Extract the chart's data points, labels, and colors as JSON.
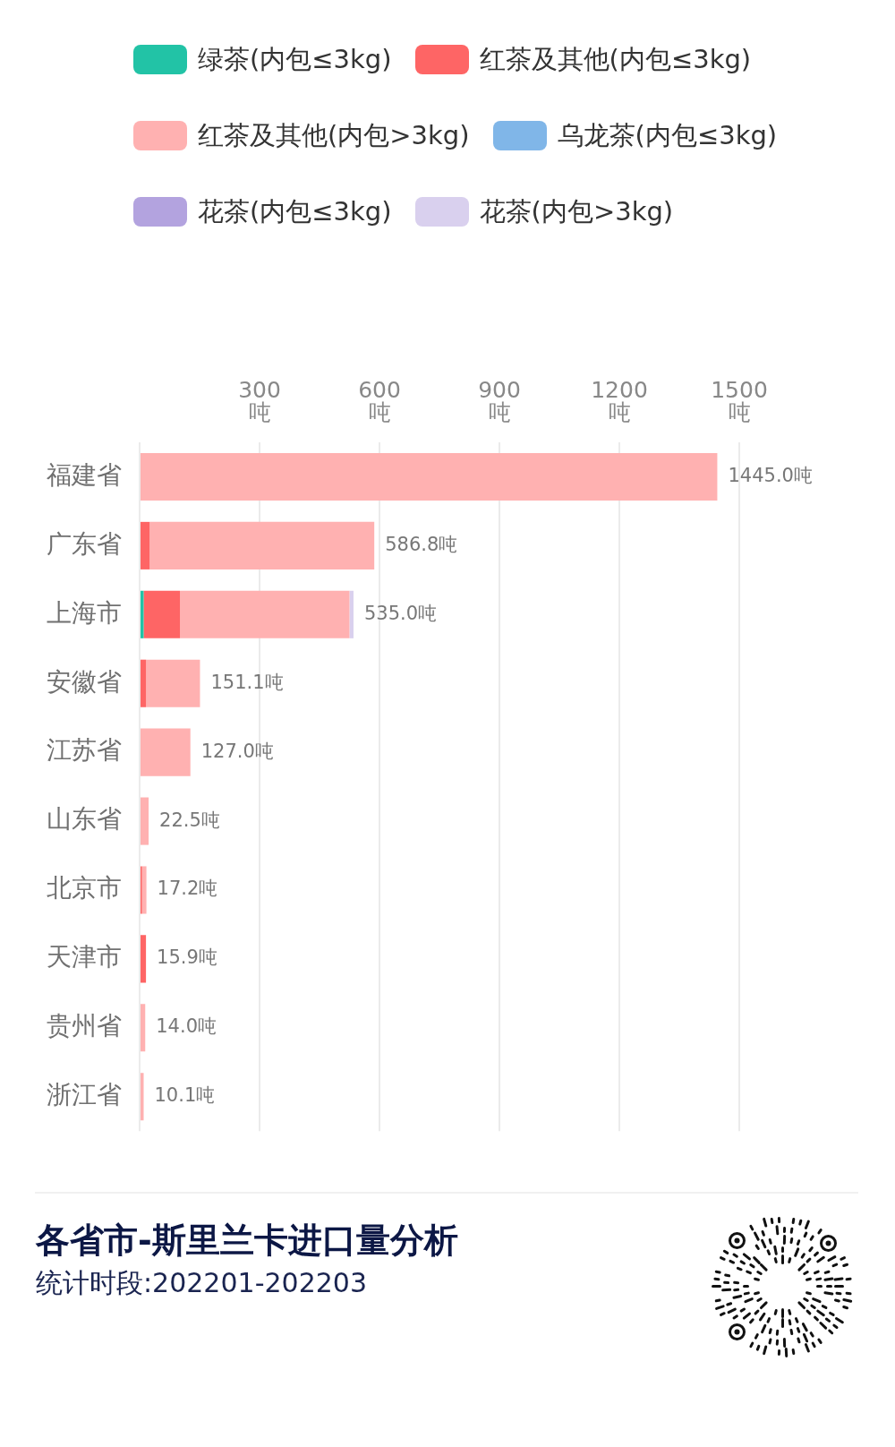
{
  "chart_data": {
    "type": "bar",
    "orientation": "horizontal",
    "stacked": true,
    "title": "各省市-斯里兰卡进口量分析",
    "subtitle": "统计时段:202201-202203",
    "categories": [
      "福建省",
      "广东省",
      "上海市",
      "安徽省",
      "江苏省",
      "山东省",
      "北京市",
      "天津市",
      "贵州省",
      "浙江省"
    ],
    "series": [
      {
        "name": "绿茶(内包≤3kg)",
        "color": "#22c3a6",
        "values": [
          null,
          null,
          10,
          null,
          null,
          null,
          null,
          null,
          null,
          null
        ]
      },
      {
        "name": "红茶及其他(内包≤3kg)",
        "color": "#fe6565",
        "values": [
          null,
          25,
          91,
          16,
          null,
          null,
          6,
          15.9,
          null,
          null
        ]
      },
      {
        "name": "红茶及其他(内包>3kg)",
        "color": "#ffb1b1",
        "values": [
          1445.0,
          562,
          424,
          135,
          127.0,
          22.5,
          11,
          null,
          14.0,
          10.1
        ]
      },
      {
        "name": "乌龙茶(内包≤3kg)",
        "color": "#80b6e8",
        "values": [
          null,
          null,
          null,
          null,
          null,
          null,
          null,
          null,
          null,
          null
        ]
      },
      {
        "name": "花茶(内包≤3kg)",
        "color": "#b3a3df",
        "values": [
          null,
          null,
          null,
          null,
          null,
          null,
          null,
          null,
          null,
          null
        ]
      },
      {
        "name": "花茶(内包>3kg)",
        "color": "#d9d0ee",
        "values": [
          null,
          null,
          10,
          null,
          null,
          null,
          null,
          null,
          null,
          null
        ]
      }
    ],
    "xlim": [
      0,
      1500
    ],
    "xticks": [
      {
        "value": 0,
        "label": null
      },
      {
        "value": 300,
        "label": "300\n吨"
      },
      {
        "value": 600,
        "label": "600\n吨"
      },
      {
        "value": 900,
        "label": "900\n吨"
      },
      {
        "value": 1200,
        "label": "1200\n吨"
      },
      {
        "value": 1500,
        "label": "1500\n吨"
      }
    ],
    "totals": [
      "1445.0吨",
      "586.8吨",
      "535.0吨",
      "151.1吨",
      "127.0吨",
      "22.5吨",
      "17.2吨",
      "15.9吨",
      "14.0吨",
      "10.1吨"
    ],
    "grid": "x",
    "legend": "top"
  }
}
